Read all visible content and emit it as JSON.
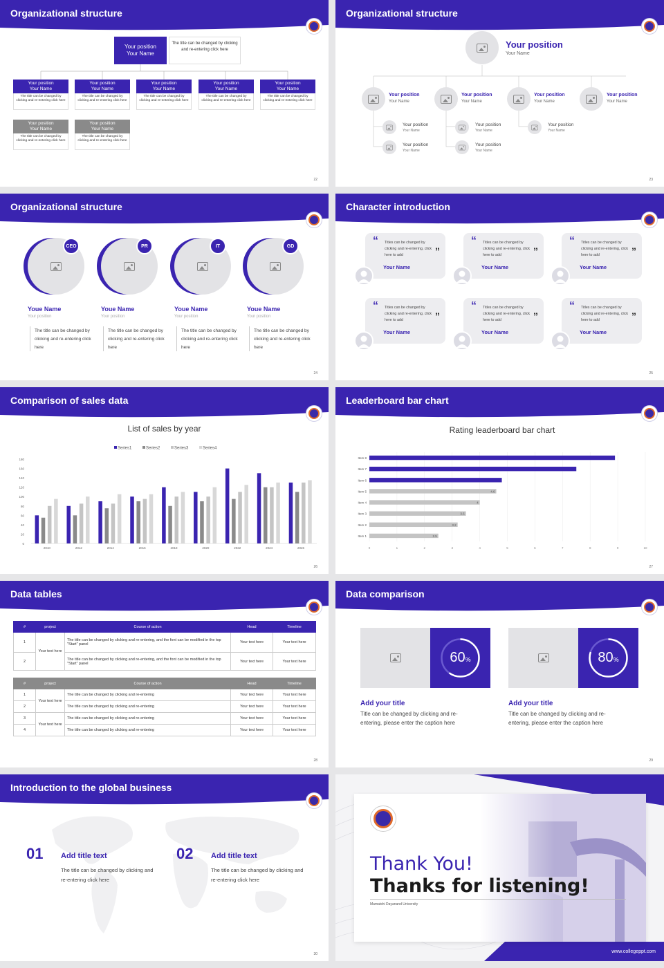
{
  "colors": {
    "primary": "#3a24b0",
    "gray": "#8a8a8a",
    "light": "#e3e3e6"
  },
  "slides": [
    {
      "title": "Organizational structure",
      "page": "22",
      "top": {
        "pos": "Your position",
        "name": "Your Name",
        "desc": "The title can be changed by clicking and re-entering click here"
      },
      "boxes": [
        {
          "pos": "Your position",
          "name": "Your Name",
          "desc": "The title can be changed by clicking and re-entering click here"
        },
        {
          "pos": "Your position",
          "name": "Your Name",
          "desc": "The title can be changed by clicking and re-entering click here"
        },
        {
          "pos": "Your position",
          "name": "Your Name",
          "desc": "The title can be changed by clicking and re-entering click here"
        },
        {
          "pos": "Your position",
          "name": "Your Name",
          "desc": "The title can be changed by clicking and re-entering click here"
        },
        {
          "pos": "Your position",
          "name": "Your Name",
          "desc": "The title can be changed by clicking and re-entering click here"
        },
        {
          "pos": "Your position",
          "name": "Your Name",
          "desc": "The title can be changed by clicking and re-entering click here"
        },
        {
          "pos": "Your position",
          "name": "Your Name",
          "desc": "The title can be changed by clicking and re-entering click here"
        }
      ]
    },
    {
      "title": "Organizational structure",
      "page": "23",
      "top": {
        "pos": "Your position",
        "name": "Your Name"
      },
      "level": [
        {
          "pos": "Your position",
          "name": "Your Name"
        },
        {
          "pos": "Your position",
          "name": "Your Name"
        },
        {
          "pos": "Your position",
          "name": "Your Name"
        },
        {
          "pos": "Your position",
          "name": "Your Name"
        }
      ],
      "sub": [
        {
          "pos": "Your position",
          "name": "Your Name"
        },
        {
          "pos": "Your position",
          "name": "Your Name"
        },
        {
          "pos": "Your position",
          "name": "Your Name"
        },
        {
          "pos": "Your position",
          "name": "Your Name"
        },
        {
          "pos": "Your position",
          "name": "Your Name"
        }
      ]
    },
    {
      "title": "Organizational structure",
      "page": "24",
      "people": [
        {
          "badge": "CEO",
          "name": "Youe Name",
          "pos": "Your position",
          "desc": "The title can be changed by clicking and re-entering click here"
        },
        {
          "badge": "PR",
          "name": "Youe Name",
          "pos": "Your position",
          "desc": "The title can be changed by clicking and re-entering click here"
        },
        {
          "badge": "IT",
          "name": "Youe Name",
          "pos": "Your position",
          "desc": "The title can be changed by clicking and re-entering click here"
        },
        {
          "badge": "GD",
          "name": "Youe Name",
          "pos": "Your position",
          "desc": "The title can be changed by clicking and re-entering click here"
        }
      ]
    },
    {
      "title": "Character introduction",
      "page": "25",
      "quote": "Titles can be changed by clicking and re-entering, click here to add",
      "name": "Your Name"
    },
    {
      "title": "Comparison of sales data",
      "page": "26"
    },
    {
      "title": "Leaderboard bar chart",
      "page": "27"
    },
    {
      "title": "Data tables",
      "page": "28",
      "t1": {
        "headers": [
          "#",
          "project",
          "Course of action",
          "Head",
          "Timeline"
        ],
        "group": "Your text here",
        "rows": [
          {
            "n": "1",
            "c": "The title can be changed by clicking and re-entering, and the font can be modified in the top \"Start\" panel",
            "h": "Your text here",
            "t": "Your text here"
          },
          {
            "n": "2",
            "c": "The title can be changed by clicking and re-entering, and the font can be modified in the top \"Start\" panel",
            "h": "Your text here",
            "t": "Your text here"
          }
        ]
      },
      "t2": {
        "headers": [
          "#",
          "project",
          "Course of action",
          "Head",
          "Timeline"
        ],
        "group": "Your text here",
        "rows": [
          {
            "n": "1",
            "c": "The title can be changed by clicking and re-entering",
            "h": "Your text here",
            "t": "Your text here"
          },
          {
            "n": "2",
            "c": "The title can be changed by clicking and re-entering",
            "h": "Your text here",
            "t": "Your text here"
          },
          {
            "n": "3",
            "c": "The title can be changed by clicking and re-entering",
            "h": "Your text here",
            "t": "Your text here"
          },
          {
            "n": "4",
            "c": "The title can be changed by clicking and re-entering",
            "h": "Your text here",
            "t": "Your text here"
          }
        ]
      }
    },
    {
      "title": "Data comparison",
      "page": "29",
      "items": [
        {
          "pct": 60,
          "pct_label": "60",
          "title": "Add your title",
          "desc": "Title can be changed by clicking and re-entering, please enter the caption here"
        },
        {
          "pct": 80,
          "pct_label": "80",
          "title": "Add your title",
          "desc": "Title can be changed by clicking and re-entering, please enter the caption here"
        }
      ]
    },
    {
      "title": "Introduction to the global business",
      "page": "30",
      "items": [
        {
          "num": "01",
          "title": "Add title text",
          "desc": "The title can be changed by clicking and re-entering click here"
        },
        {
          "num": "02",
          "title": "Add title text",
          "desc": "The title can be changed by clicking and re-entering click here"
        }
      ]
    },
    {
      "thanks1": "Thank You!",
      "thanks2": "Thanks for listening!",
      "uni": "Mamatshi Dayanand University",
      "url": "www.collegeppt.com"
    }
  ],
  "chart_data": [
    {
      "type": "bar",
      "title": "List of sales by year",
      "xlabel": "",
      "ylabel": "",
      "ylim": [
        0,
        180
      ],
      "yticks": [
        "0",
        "20",
        "40",
        "60",
        "80",
        "100",
        "120",
        "140",
        "160",
        "180"
      ],
      "categories": [
        "2010",
        "2012",
        "2014",
        "2016",
        "2018",
        "2020",
        "2022",
        "2024",
        "2026"
      ],
      "series": [
        {
          "name": "Series1",
          "color": "#3a24b0",
          "values": [
            60,
            80,
            90,
            100,
            120,
            110,
            160,
            150,
            130
          ]
        },
        {
          "name": "Series2",
          "color": "#8a8a8a",
          "values": [
            55,
            60,
            75,
            90,
            80,
            90,
            95,
            120,
            110
          ]
        },
        {
          "name": "Series3",
          "color": "#c4c4c4",
          "values": [
            80,
            85,
            85,
            95,
            100,
            100,
            110,
            120,
            130
          ]
        },
        {
          "name": "Series4",
          "color": "#d8d8d8",
          "values": [
            95,
            100,
            105,
            105,
            110,
            120,
            125,
            130,
            135
          ]
        }
      ],
      "legend": "top",
      "grid": false
    },
    {
      "type": "bar",
      "orientation": "horizontal",
      "title": "Rating leaderboard bar chart",
      "categories": [
        "Item 8",
        "Item 7",
        "Item 6",
        "Item 5",
        "Item 4",
        "Item 3",
        "Item 2",
        "Item 1"
      ],
      "values": [
        8.9,
        7.5,
        4.8,
        4.6,
        4,
        3.5,
        3.2,
        2.5
      ],
      "labels": [
        "",
        "",
        "",
        "4.6",
        "4",
        "3.5",
        "3.2",
        "2.5"
      ],
      "colors": [
        "#3a24b0",
        "#3a24b0",
        "#3a24b0",
        "#c4c4c4",
        "#c4c4c4",
        "#c4c4c4",
        "#c4c4c4",
        "#c4c4c4"
      ],
      "xlim": [
        0,
        10
      ],
      "xticks": [
        "0",
        "1",
        "2",
        "3",
        "4",
        "5",
        "6",
        "7",
        "8",
        "9",
        "10"
      ],
      "grid": true
    }
  ]
}
